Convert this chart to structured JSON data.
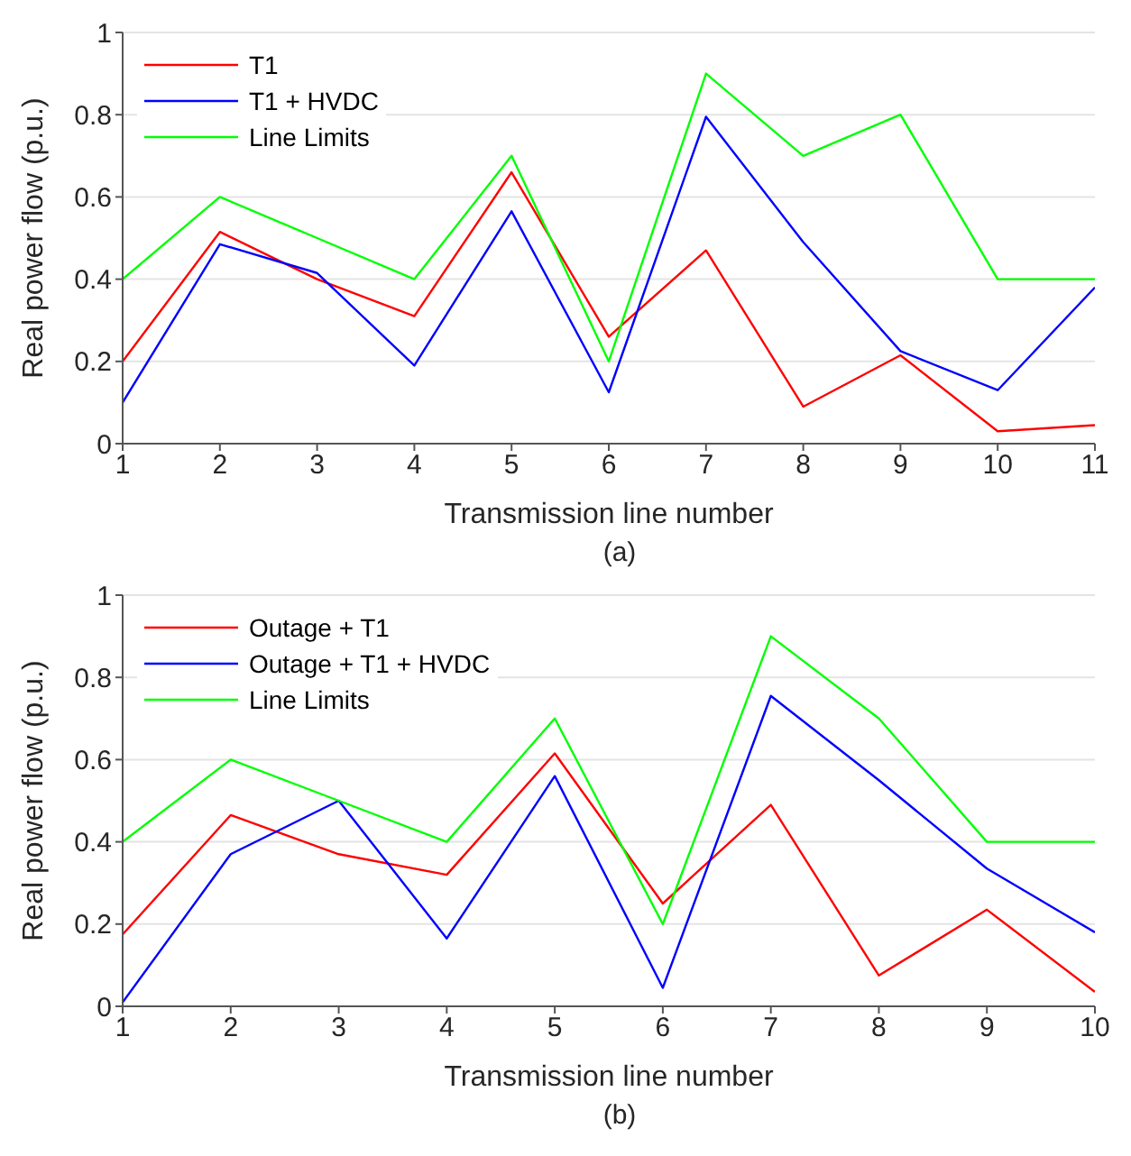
{
  "chart_data": [
    {
      "type": "line",
      "xlabel": "Transmission line number",
      "ylabel": "Real power flow (p.u.)",
      "annotations": [
        "(a)"
      ],
      "x": [
        1,
        2,
        3,
        4,
        5,
        6,
        7,
        8,
        9,
        10,
        11
      ],
      "xlim": [
        1,
        11
      ],
      "xticks": [
        1,
        2,
        3,
        4,
        5,
        6,
        7,
        8,
        9,
        10,
        11
      ],
      "ylim": [
        0,
        1
      ],
      "yticks": [
        0,
        0.2,
        0.4,
        0.6,
        0.8,
        1
      ],
      "grid": "y",
      "legend": "top left",
      "marker": "none",
      "line_style": "solid",
      "series": [
        {
          "name": "T1",
          "color": "#ff0000",
          "values": [
            0.2,
            0.515,
            0.4,
            0.31,
            0.66,
            0.26,
            0.47,
            0.09,
            0.215,
            0.03,
            0.045
          ]
        },
        {
          "name": "T1 + HVDC",
          "color": "#0000ff",
          "values": [
            0.1,
            0.485,
            0.415,
            0.19,
            0.565,
            0.125,
            0.795,
            0.49,
            0.225,
            0.13,
            0.38
          ]
        },
        {
          "name": "Line Limits",
          "color": "#00ff00",
          "values": [
            0.4,
            0.6,
            0.5,
            0.4,
            0.7,
            0.2,
            0.9,
            0.7,
            0.8,
            0.4,
            0.4
          ]
        }
      ]
    },
    {
      "type": "line",
      "xlabel": "Transmission line number",
      "ylabel": "Real power flow (p.u.)",
      "annotations": [
        "(b)"
      ],
      "x": [
        1,
        2,
        3,
        4,
        5,
        6,
        7,
        8,
        9,
        10
      ],
      "xlim": [
        1,
        10
      ],
      "xticks": [
        1,
        2,
        3,
        4,
        5,
        6,
        7,
        8,
        9,
        10
      ],
      "ylim": [
        0,
        1
      ],
      "yticks": [
        0,
        0.2,
        0.4,
        0.6,
        0.8,
        1
      ],
      "grid": "y",
      "legend": "top left",
      "marker": "none",
      "line_style": "solid",
      "series": [
        {
          "name": "Outage + T1",
          "color": "#ff0000",
          "values": [
            0.175,
            0.465,
            0.37,
            0.32,
            0.615,
            0.25,
            0.49,
            0.075,
            0.235,
            0.035
          ]
        },
        {
          "name": "Outage + T1 + HVDC",
          "color": "#0000ff",
          "values": [
            0.01,
            0.37,
            0.5,
            0.165,
            0.56,
            0.045,
            0.755,
            0.55,
            0.335,
            0.18
          ]
        },
        {
          "name": "Line Limits",
          "color": "#00ff00",
          "values": [
            0.4,
            0.6,
            0.5,
            0.4,
            0.7,
            0.2,
            0.9,
            0.7,
            0.4,
            0.4
          ]
        }
      ]
    }
  ]
}
